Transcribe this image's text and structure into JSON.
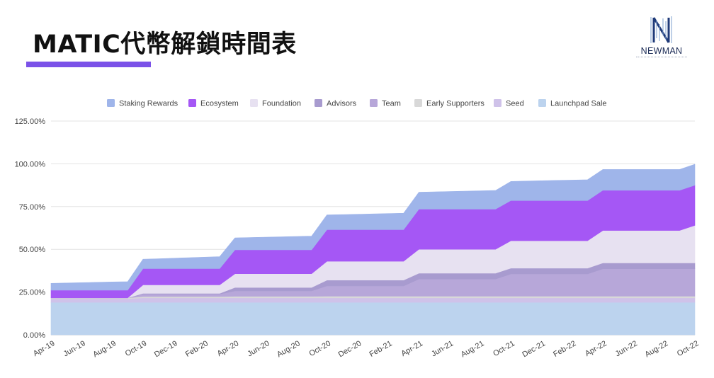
{
  "header": {
    "title": "MATIC代幣解鎖時間表",
    "logo_text": "NEWMAN",
    "accent_color": "#7b52e8"
  },
  "chart_data": {
    "type": "area",
    "stacked": true,
    "y_tick_labels": [
      "0.00%",
      "25.00%",
      "50.00%",
      "75.00%",
      "100.00%",
      "125.00%"
    ],
    "ylim": [
      0,
      125
    ],
    "grid": true,
    "legend_position": "top",
    "x_tick_labels": [
      "Apr-19",
      "Jun-19",
      "Aug-19",
      "Oct-19",
      "Dec-19",
      "Feb-20",
      "Apr-20",
      "Jun-20",
      "Aug-20",
      "Oct-20",
      "Dec-20",
      "Feb-21",
      "Apr-21",
      "Jun-21",
      "Aug-21",
      "Oct-21",
      "Dec-21",
      "Feb-22",
      "Apr-22",
      "Jun-22",
      "Aug-22",
      "Oct-22"
    ],
    "x": [
      "Apr-19",
      "May-19",
      "Jun-19",
      "Jul-19",
      "Aug-19",
      "Sep-19",
      "Oct-19",
      "Nov-19",
      "Dec-19",
      "Jan-20",
      "Feb-20",
      "Mar-20",
      "Apr-20",
      "May-20",
      "Jun-20",
      "Jul-20",
      "Aug-20",
      "Sep-20",
      "Oct-20",
      "Nov-20",
      "Dec-20",
      "Jan-21",
      "Feb-21",
      "Mar-21",
      "Apr-21",
      "May-21",
      "Jun-21",
      "Jul-21",
      "Aug-21",
      "Sep-21",
      "Oct-21",
      "Nov-21",
      "Dec-21",
      "Jan-22",
      "Feb-22",
      "Mar-22",
      "Apr-22",
      "May-22",
      "Jun-22",
      "Jul-22",
      "Aug-22",
      "Sep-22",
      "Oct-22"
    ],
    "series": [
      {
        "name": "Launchpad Sale",
        "color": "#bcd3ee",
        "values": [
          19,
          19,
          19,
          19,
          19,
          19,
          19,
          19,
          19,
          19,
          19,
          19,
          19,
          19,
          19,
          19,
          19,
          19,
          19,
          19,
          19,
          19,
          19,
          19,
          19,
          19,
          19,
          19,
          19,
          19,
          19,
          19,
          19,
          19,
          19,
          19,
          19,
          19,
          19,
          19,
          19,
          19,
          19
        ]
      },
      {
        "name": "Seed",
        "color": "#cfc2e9",
        "values": [
          2.1,
          2.1,
          2.1,
          2.1,
          2.1,
          2.1,
          2.6,
          2.6,
          2.6,
          2.6,
          2.6,
          2.6,
          2.6,
          2.6,
          2.6,
          2.6,
          2.6,
          2.6,
          2.6,
          2.6,
          2.6,
          2.6,
          2.6,
          2.6,
          2.6,
          2.6,
          2.6,
          2.6,
          2.6,
          2.6,
          2.6,
          2.6,
          2.6,
          2.6,
          2.6,
          2.6,
          2.6,
          2.6,
          2.6,
          2.6,
          2.6,
          2.6,
          2.6
        ]
      },
      {
        "name": "Early Supporters",
        "color": "#d8d8d8",
        "values": [
          0.5,
          0.5,
          0.5,
          0.5,
          0.5,
          0.5,
          0.8,
          0.8,
          0.8,
          0.8,
          0.8,
          0.8,
          0.9,
          0.9,
          0.9,
          0.9,
          0.9,
          0.9,
          1.0,
          1.0,
          1.0,
          1.0,
          1.0,
          1.0,
          1.0,
          1.0,
          1.0,
          1.0,
          1.0,
          1.0,
          1.0,
          1.0,
          1.0,
          1.0,
          1.0,
          1.0,
          1.0,
          1.0,
          1.0,
          1.0,
          1.0,
          1.0,
          1.0
        ]
      },
      {
        "name": "Team",
        "color": "#b7a7d9",
        "values": [
          0,
          0,
          0,
          0,
          0,
          0,
          1.4,
          1.4,
          1.4,
          1.4,
          1.4,
          1.4,
          3.2,
          3.2,
          3.2,
          3.2,
          3.2,
          3.2,
          6,
          6,
          6,
          6,
          6,
          6,
          10,
          10,
          10,
          10,
          10,
          10,
          13,
          13,
          13,
          13,
          13,
          13,
          16,
          16,
          16,
          16,
          16,
          16,
          16
        ]
      },
      {
        "name": "Advisors",
        "color": "#a89bcf",
        "values": [
          0,
          0,
          0,
          0,
          0,
          0,
          0.4,
          0.4,
          0.4,
          0.4,
          0.4,
          0.4,
          2,
          2,
          2,
          2,
          2,
          2,
          3.4,
          3.4,
          3.4,
          3.4,
          3.4,
          3.4,
          3.4,
          3.4,
          3.4,
          3.4,
          3.4,
          3.4,
          3.4,
          3.4,
          3.4,
          3.4,
          3.4,
          3.4,
          3.4,
          3.4,
          3.4,
          3.4,
          3.4,
          3.4,
          3.4
        ]
      },
      {
        "name": "Foundation",
        "color": "#e7e1f1",
        "values": [
          0,
          0,
          0,
          0,
          0,
          0,
          5,
          5,
          5,
          5,
          5,
          5,
          8,
          8,
          8,
          8,
          8,
          8,
          11,
          11,
          11,
          11,
          11,
          11,
          14,
          14,
          14,
          14,
          14,
          14,
          16,
          16,
          16,
          16,
          16,
          16,
          19,
          19,
          19,
          19,
          19,
          19,
          22
        ]
      },
      {
        "name": "Ecosystem",
        "color": "#a557f5",
        "values": [
          4.5,
          4.5,
          4.5,
          4.5,
          4.5,
          4.5,
          9.5,
          9.5,
          9.5,
          9.5,
          9.5,
          9.5,
          14,
          14,
          14,
          14,
          14,
          14,
          18.5,
          18.5,
          18.5,
          18.5,
          18.5,
          18.5,
          23.5,
          23.5,
          23.5,
          23.5,
          23.5,
          23.5,
          23.5,
          23.5,
          23.5,
          23.5,
          23.5,
          23.5,
          23.5,
          23.5,
          23.5,
          23.5,
          23.5,
          23.5,
          23.5
        ]
      },
      {
        "name": "Staking Rewards",
        "color": "#9fb5ea",
        "values": [
          4,
          4.2,
          4.4,
          4.6,
          4.8,
          5,
          5.5,
          5.8,
          6.1,
          6.4,
          6.7,
          7,
          7,
          7.2,
          7.4,
          7.6,
          7.8,
          8,
          8.6,
          8.8,
          9,
          9.2,
          9.4,
          9.6,
          9.9,
          10.1,
          10.3,
          10.5,
          10.7,
          10.9,
          11.2,
          11.4,
          11.6,
          11.8,
          12,
          12.2,
          12.2,
          12.2,
          12.2,
          12.2,
          12.2,
          12.2,
          12.2
        ]
      }
    ]
  }
}
